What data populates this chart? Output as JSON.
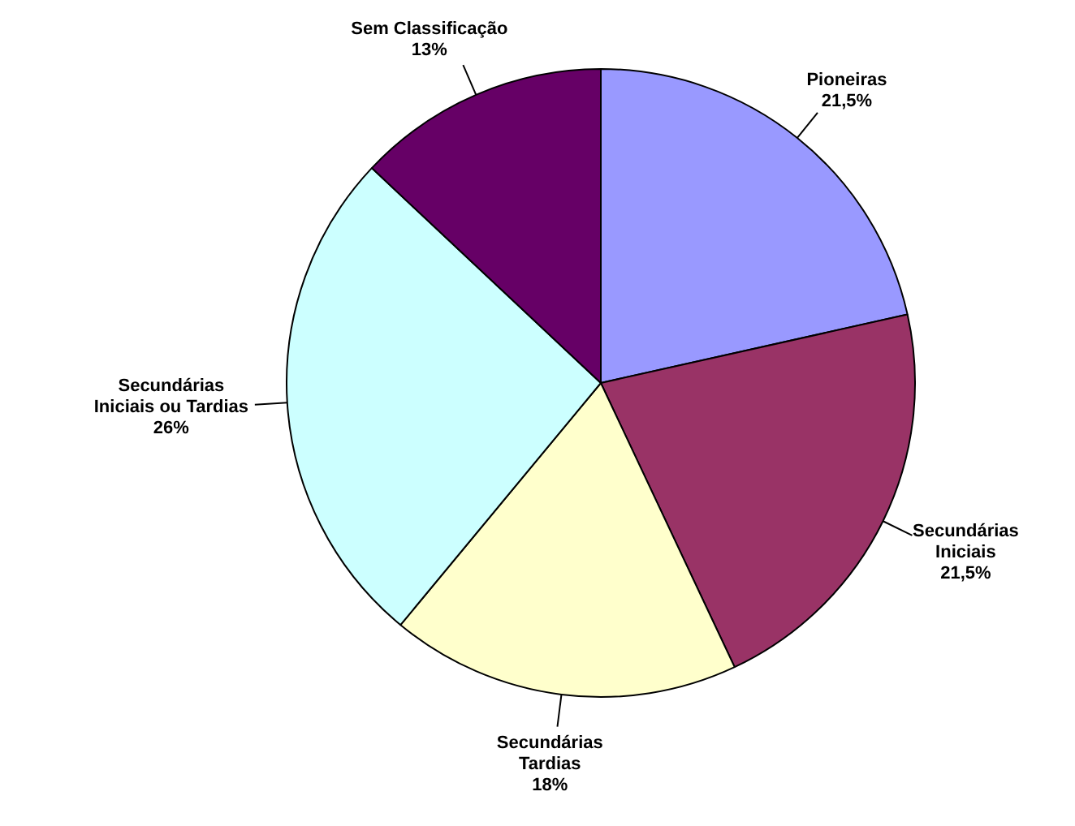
{
  "chart_data": {
    "type": "pie",
    "categories": [
      "Pioneiras",
      "Secundárias Iniciais",
      "Secundárias Tardias",
      "Secundárias Iniciais ou Tardias",
      "Sem Classificação"
    ],
    "values": [
      21.5,
      21.5,
      18,
      26,
      13
    ],
    "value_labels": [
      "21,5%",
      "21,5%",
      "18%",
      "26%",
      "13%"
    ],
    "colors": [
      "#9999ff",
      "#993366",
      "#ffffcc",
      "#ccffff",
      "#660066"
    ],
    "legend": false
  }
}
